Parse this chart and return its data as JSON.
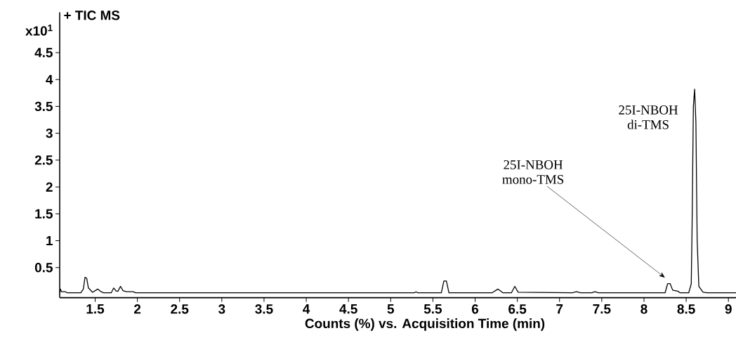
{
  "chart_data": {
    "type": "line",
    "title": "+ TIC MS",
    "xlabel": "Counts (%) vs. Acquisition Time (min)",
    "ylabel": "x10$^{1}$",
    "xlim": [
      1.08,
      9.09
    ],
    "ylim": [
      -0.06,
      5.25
    ],
    "xticks": [
      1.5,
      2,
      2.5,
      3,
      3.5,
      4,
      4.5,
      5,
      5.5,
      6,
      6.5,
      7,
      7.5,
      8,
      8.5,
      9
    ],
    "yticks": [
      0.5,
      1,
      1.5,
      2,
      2.5,
      3,
      3.5,
      4,
      4.5
    ],
    "grid": false,
    "marker": "none",
    "line_style": "solid",
    "annotations": [
      {
        "text": "25I-NBOH di-TMS",
        "x": 8.6,
        "y": 3.82
      },
      "25I-NBOH mono-TMS"
    ],
    "series": [
      {
        "color": "#000000",
        "x": [
          1.08,
          1.09,
          1.1,
          1.15,
          1.17,
          1.33,
          1.36,
          1.38,
          1.4,
          1.42,
          1.47,
          1.53,
          1.57,
          1.6,
          1.69,
          1.72,
          1.75,
          1.77,
          1.8,
          1.83,
          1.87,
          1.95,
          1.98,
          5.28,
          5.3,
          5.32,
          5.6,
          5.63,
          5.66,
          5.69,
          6.2,
          6.27,
          6.33,
          6.43,
          6.47,
          6.51,
          7.15,
          7.2,
          7.25,
          7.38,
          7.42,
          7.46,
          8.25,
          8.28,
          8.31,
          8.34,
          8.4,
          8.43,
          8.53,
          8.56,
          8.57,
          8.585,
          8.6,
          8.615,
          8.63,
          8.65,
          8.7,
          8.75,
          9.09
        ],
        "values": [
          0.03,
          0.1,
          0.05,
          0.05,
          0.03,
          0.03,
          0.1,
          0.32,
          0.3,
          0.12,
          0.04,
          0.1,
          0.05,
          0.03,
          0.03,
          0.12,
          0.06,
          0.06,
          0.15,
          0.07,
          0.05,
          0.05,
          0.03,
          0.03,
          0.05,
          0.03,
          0.03,
          0.25,
          0.25,
          0.03,
          0.03,
          0.1,
          0.03,
          0.03,
          0.15,
          0.04,
          0.03,
          0.05,
          0.03,
          0.03,
          0.05,
          0.03,
          0.03,
          0.2,
          0.2,
          0.08,
          0.06,
          0.03,
          0.03,
          0.2,
          1.3,
          3.5,
          3.82,
          3.2,
          1.0,
          0.15,
          0.04,
          0.03,
          0.03
        ]
      }
    ]
  }
}
